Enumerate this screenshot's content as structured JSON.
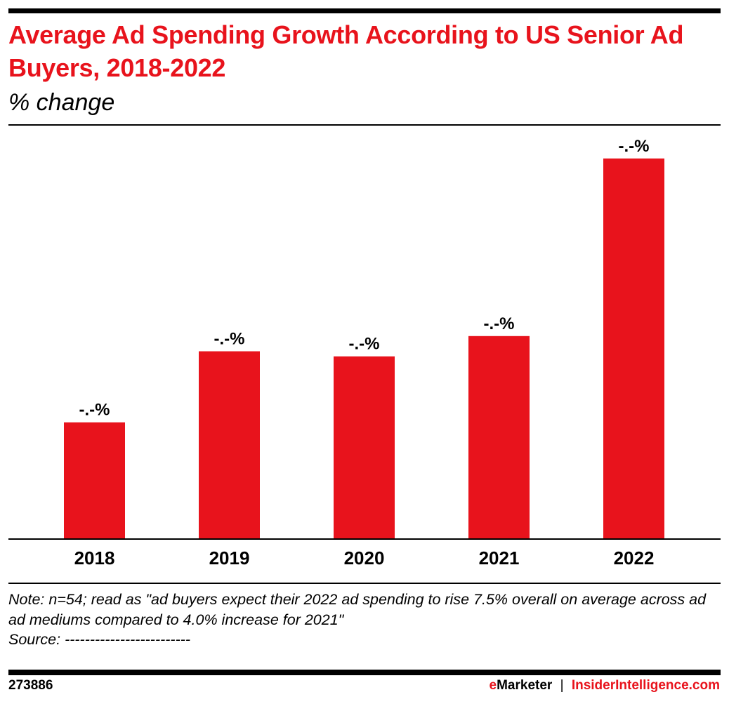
{
  "title": "Average Ad Spending Growth According to US Senior Ad Buyers, 2018-2022",
  "subtitle": "% change",
  "chart_data": {
    "type": "bar",
    "title": "Average Ad Spending Growth According to US Senior Ad Buyers, 2018-2022",
    "ylabel": "% change",
    "categories": [
      "2018",
      "2019",
      "2020",
      "2021",
      "2022"
    ],
    "values": [
      2.3,
      3.7,
      3.6,
      4.0,
      7.5
    ],
    "data_labels": [
      "-.-%",
      "-.-%",
      "-.-%",
      "-.-%",
      "-.-%"
    ],
    "ylim": [
      0,
      8
    ],
    "grid": false,
    "bar_color": "#e8131c"
  },
  "note": "Note: n=54; read as \"ad buyers expect their 2022 ad spending to rise 7.5% overall on average across ad ad mediums compared to 4.0% increase for 2021\"",
  "source": "Source: -------------------------",
  "footer": {
    "chart_id": "273886",
    "brand_e": "e",
    "brand_rest": "Marketer",
    "separator": "|",
    "site": "InsiderIntelligence.com"
  }
}
